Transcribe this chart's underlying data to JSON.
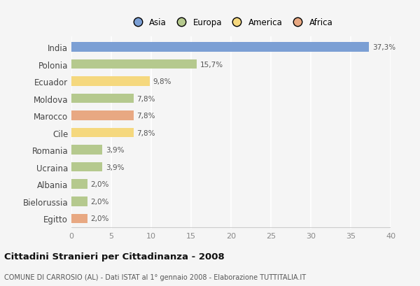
{
  "categories": [
    "India",
    "Polonia",
    "Ecuador",
    "Moldova",
    "Marocco",
    "Cile",
    "Romania",
    "Ucraina",
    "Albania",
    "Bielorussia",
    "Egitto"
  ],
  "values": [
    37.3,
    15.7,
    9.8,
    7.8,
    7.8,
    7.8,
    3.9,
    3.9,
    2.0,
    2.0,
    2.0
  ],
  "labels": [
    "37,3%",
    "15,7%",
    "9,8%",
    "7,8%",
    "7,8%",
    "7,8%",
    "3,9%",
    "3,9%",
    "2,0%",
    "2,0%",
    "2,0%"
  ],
  "colors": [
    "#7b9fd4",
    "#b5c98e",
    "#f5d87e",
    "#b5c98e",
    "#e8a882",
    "#f5d87e",
    "#b5c98e",
    "#b5c98e",
    "#b5c98e",
    "#b5c98e",
    "#e8a882"
  ],
  "legend_labels": [
    "Asia",
    "Europa",
    "America",
    "Africa"
  ],
  "legend_colors": [
    "#7b9fd4",
    "#b5c98e",
    "#f5d87e",
    "#e8a882"
  ],
  "title": "Cittadini Stranieri per Cittadinanza - 2008",
  "subtitle": "COMUNE DI CARROSIO (AL) - Dati ISTAT al 1° gennaio 2008 - Elaborazione TUTTITALIA.IT",
  "xlim": [
    0,
    40
  ],
  "xticks": [
    0,
    5,
    10,
    15,
    20,
    25,
    30,
    35,
    40
  ],
  "background_color": "#f5f5f5",
  "grid_color": "#ffffff",
  "bar_height": 0.55
}
